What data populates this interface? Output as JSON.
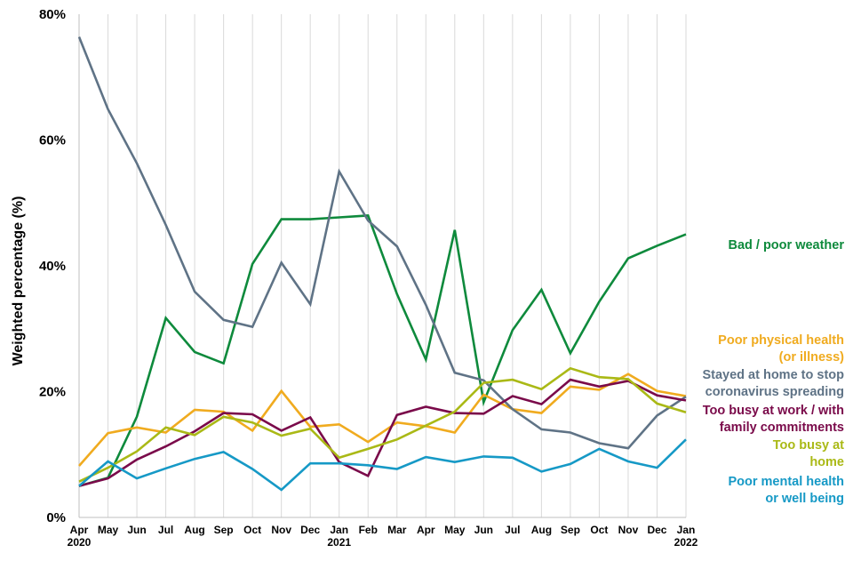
{
  "chart_data": {
    "type": "line",
    "title": "",
    "xlabel": "",
    "ylabel": "Weighted percentage (%)",
    "ylim": [
      0,
      80
    ],
    "yticks": [
      {
        "value": 0,
        "label": "0%"
      },
      {
        "value": 20,
        "label": "20%"
      },
      {
        "value": 40,
        "label": "40%"
      },
      {
        "value": 60,
        "label": "60%"
      },
      {
        "value": 80,
        "label": "80%"
      }
    ],
    "grid": "vertical",
    "x": [
      "Apr 2020",
      "May",
      "Jun",
      "Jul",
      "Aug",
      "Sep",
      "Oct",
      "Nov",
      "Dec",
      "Jan 2021",
      "Feb",
      "Mar",
      "Apr",
      "May",
      "Jun",
      "Jul",
      "Aug",
      "Sep",
      "Oct",
      "Nov",
      "Dec",
      "Jan 2022"
    ],
    "x_tick_labels": [
      {
        "main": "Apr",
        "year": "2020"
      },
      {
        "main": "May",
        "year": ""
      },
      {
        "main": "Jun",
        "year": ""
      },
      {
        "main": "Jul",
        "year": ""
      },
      {
        "main": "Aug",
        "year": ""
      },
      {
        "main": "Sep",
        "year": ""
      },
      {
        "main": "Oct",
        "year": ""
      },
      {
        "main": "Nov",
        "year": ""
      },
      {
        "main": "Dec",
        "year": ""
      },
      {
        "main": "Jan",
        "year": "2021"
      },
      {
        "main": "Feb",
        "year": ""
      },
      {
        "main": "Mar",
        "year": ""
      },
      {
        "main": "Apr",
        "year": ""
      },
      {
        "main": "May",
        "year": ""
      },
      {
        "main": "Jun",
        "year": ""
      },
      {
        "main": "Jul",
        "year": ""
      },
      {
        "main": "Aug",
        "year": ""
      },
      {
        "main": "Sep",
        "year": ""
      },
      {
        "main": "Oct",
        "year": ""
      },
      {
        "main": "Nov",
        "year": ""
      },
      {
        "main": "Dec",
        "year": ""
      },
      {
        "main": "Jan",
        "year": "2022"
      }
    ],
    "series": [
      {
        "name": "Bad / poor weather",
        "label_lines": [
          "Bad / poor weather"
        ],
        "color": "#0e8a3c",
        "values": [
          5.0,
          6.3,
          16.0,
          31.7,
          26.3,
          24.5,
          40.3,
          47.4,
          47.4,
          47.7,
          48.0,
          35.5,
          25.1,
          45.7,
          18.3,
          29.8,
          36.2,
          26.1,
          34.3,
          41.2,
          43.2,
          45.0
        ]
      },
      {
        "name": "Poor physical health (or illness)",
        "label_lines": [
          "Poor physical health",
          "(or illness)"
        ],
        "color": "#f0ab1f",
        "values": [
          8.2,
          13.4,
          14.3,
          13.5,
          17.1,
          16.8,
          13.8,
          20.1,
          14.4,
          14.8,
          12.0,
          15.1,
          14.5,
          13.5,
          19.5,
          17.2,
          16.6,
          20.8,
          20.3,
          22.8,
          20.1,
          19.3
        ]
      },
      {
        "name": "Stayed at home to stop coronavirus spreading",
        "label_lines": [
          "Stayed at home to stop",
          "coronavirus spreading"
        ],
        "color": "#5f7386",
        "values": [
          76.4,
          64.9,
          56.3,
          46.5,
          35.9,
          31.4,
          30.3,
          40.5,
          33.9,
          55.0,
          47.2,
          43.1,
          33.8,
          23.0,
          21.8,
          17.2,
          14.0,
          13.5,
          11.8,
          11.0,
          16.2,
          19.2
        ]
      },
      {
        "name": "Too busy at work / with family commitments",
        "label_lines": [
          "Too busy at work / with",
          "family commitments"
        ],
        "color": "#7a0a4a",
        "values": [
          5.0,
          6.2,
          9.2,
          11.3,
          13.7,
          16.6,
          16.4,
          13.8,
          15.9,
          8.8,
          6.6,
          16.3,
          17.6,
          16.6,
          16.5,
          19.3,
          18.0,
          21.9,
          20.8,
          21.7,
          19.4,
          18.6
        ]
      },
      {
        "name": "Too busy at home",
        "label_lines": [
          "Too busy at",
          "home"
        ],
        "color": "#aab916",
        "values": [
          5.7,
          7.9,
          10.5,
          14.3,
          13.1,
          16.0,
          15.1,
          13.0,
          14.1,
          9.5,
          10.9,
          12.4,
          14.6,
          16.8,
          21.4,
          21.9,
          20.4,
          23.7,
          22.3,
          22.0,
          18.1,
          16.7
        ]
      },
      {
        "name": "Poor mental health or well being",
        "label_lines": [
          "Poor mental health",
          "or well being"
        ],
        "color": "#1699c6",
        "values": [
          5.0,
          8.9,
          6.2,
          7.8,
          9.3,
          10.4,
          7.7,
          4.4,
          8.6,
          8.6,
          8.3,
          7.7,
          9.6,
          8.8,
          9.7,
          9.5,
          7.3,
          8.5,
          10.9,
          8.9,
          7.9,
          12.4
        ]
      }
    ]
  }
}
